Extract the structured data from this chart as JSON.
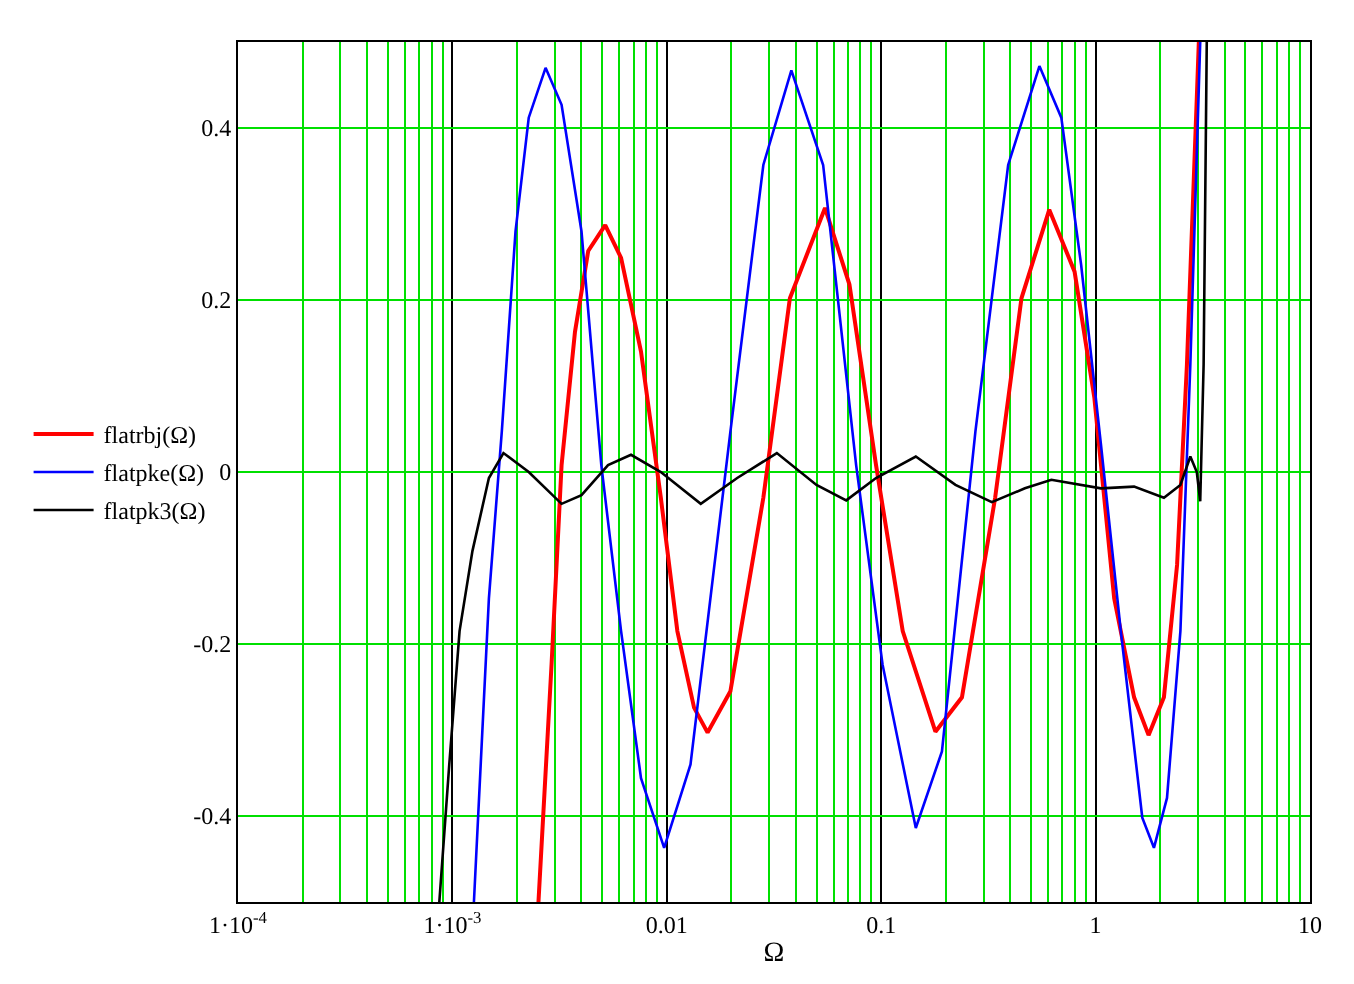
{
  "chart_data": {
    "type": "line",
    "xlabel": "Ω",
    "log": "x",
    "grid": true,
    "legend": "left",
    "marker": "none",
    "line_style": "solid",
    "xlim": [
      0.0001,
      10
    ],
    "xticks": [
      {
        "value": 0.0001,
        "label": "1·10$^{-4}$"
      },
      {
        "value": 0.001,
        "label": "1·10$^{-3}$"
      },
      0.01,
      0.1,
      1,
      10
    ],
    "ylim": [
      -0.5,
      0.5
    ],
    "yticks": [
      -0.4,
      -0.2,
      0,
      0.2,
      0.4
    ],
    "series": [
      {
        "name": "flatrbj(Ω)",
        "color": "#ff0000",
        "x": [
          0.00252,
          0.0029,
          0.00323,
          0.00373,
          0.0043,
          0.00516,
          0.00612,
          0.00758,
          0.00938,
          0.0112,
          0.0134,
          0.0155,
          0.0198,
          0.0282,
          0.0375,
          0.0547,
          0.0711,
          0.0946,
          0.126,
          0.179,
          0.238,
          0.34,
          0.451,
          0.608,
          0.798,
          0.987,
          1.221,
          1.512,
          1.766,
          2.083,
          2.399,
          2.667,
          2.965,
          3.03
        ],
        "values": [
          -0.5,
          -0.224,
          0.008,
          0.163,
          0.257,
          0.287,
          0.249,
          0.14,
          -0.03,
          -0.185,
          -0.274,
          -0.303,
          -0.255,
          -0.03,
          0.202,
          0.307,
          0.218,
          0.008,
          -0.185,
          -0.302,
          -0.262,
          -0.03,
          0.202,
          0.305,
          0.233,
          0.086,
          -0.147,
          -0.262,
          -0.306,
          -0.262,
          -0.108,
          0.125,
          0.435,
          0.5
        ]
      },
      {
        "name": "flatpke(Ω)",
        "color": "#0000ff",
        "x": [
          0.00126,
          0.00148,
          0.0017,
          0.00197,
          0.00227,
          0.00272,
          0.00323,
          0.004,
          0.00495,
          0.00612,
          0.00758,
          0.00972,
          0.0129,
          0.0198,
          0.0282,
          0.0381,
          0.0536,
          0.0764,
          0.1015,
          0.145,
          0.192,
          0.275,
          0.391,
          0.547,
          0.692,
          0.856,
          1.059,
          1.311,
          1.651,
          1.871,
          2.153,
          2.486,
          2.766,
          3.076
        ],
        "values": [
          -0.5,
          -0.147,
          0.047,
          0.28,
          0.412,
          0.47,
          0.427,
          0.28,
          0.008,
          -0.185,
          -0.356,
          -0.437,
          -0.34,
          0.047,
          0.357,
          0.467,
          0.357,
          0.008,
          -0.224,
          -0.414,
          -0.325,
          0.047,
          0.357,
          0.472,
          0.412,
          0.241,
          0.032,
          -0.185,
          -0.402,
          -0.437,
          -0.379,
          -0.185,
          0.125,
          0.5
        ]
      },
      {
        "name": "flatpk3(Ω)",
        "color": "#000000",
        "x": [
          0.000869,
          0.000967,
          0.00108,
          0.00124,
          0.00148,
          0.00173,
          0.00227,
          0.00323,
          0.004,
          0.00532,
          0.00681,
          0.00938,
          0.0144,
          0.0213,
          0.0326,
          0.0499,
          0.0687,
          0.0946,
          0.145,
          0.222,
          0.328,
          0.468,
          0.622,
          1.059,
          1.512,
          2.083,
          2.486,
          2.766,
          2.965,
          3.076,
          3.19,
          3.3
        ],
        "values": [
          -0.5,
          -0.34,
          -0.185,
          -0.092,
          -0.007,
          0.022,
          0,
          -0.037,
          -0.027,
          0.008,
          0.02,
          0,
          -0.037,
          -0.007,
          0.022,
          -0.015,
          -0.033,
          -0.007,
          0.018,
          -0.015,
          -0.035,
          -0.019,
          -0.009,
          -0.019,
          -0.017,
          -0.03,
          -0.015,
          0.018,
          0,
          -0.034,
          0.125,
          0.5
        ]
      }
    ]
  }
}
